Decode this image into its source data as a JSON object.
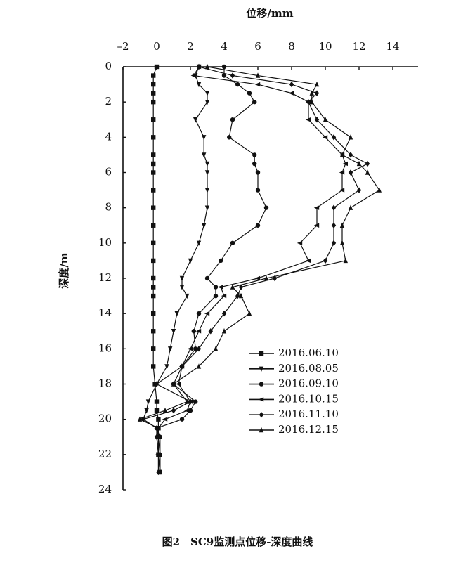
{
  "chart_data": {
    "type": "line",
    "title": "图2　SC9监测点位移-深度曲线",
    "x_label": "位移/mm",
    "y_label": "深度/m",
    "xlim": [
      -2,
      15.5
    ],
    "ylim": [
      0,
      24
    ],
    "xticks": [
      {
        "value": -2,
        "label": "–2"
      },
      0,
      2,
      4,
      6,
      8,
      10,
      12,
      14
    ],
    "yticks": [
      0,
      2,
      4,
      6,
      8,
      10,
      12,
      14,
      16,
      18,
      20,
      22,
      24
    ],
    "y": [
      0,
      0.5,
      1,
      1.5,
      2,
      3,
      4,
      5,
      5.5,
      6,
      7,
      8,
      9,
      10,
      11,
      12,
      12.5,
      13,
      14,
      15,
      16,
      17,
      18,
      19,
      19.5,
      20,
      20.5,
      21,
      22,
      23
    ],
    "series": [
      {
        "name": "2016.06.10",
        "color": "#111111",
        "marker": "square",
        "values": [
          0,
          -0.2,
          -0.2,
          -0.2,
          -0.2,
          -0.2,
          -0.2,
          -0.2,
          -0.2,
          -0.2,
          -0.2,
          -0.2,
          -0.2,
          -0.2,
          -0.2,
          -0.2,
          -0.2,
          -0.2,
          -0.2,
          -0.2,
          -0.2,
          -0.2,
          -0.1,
          0,
          0,
          0.1,
          0.1,
          0.1,
          0.1,
          0.2
        ]
      },
      {
        "name": "2016.08.05",
        "color": "#111111",
        "marker": "tri-down",
        "values": [
          2.5,
          2.3,
          2.5,
          3,
          3,
          2.3,
          2.8,
          2.8,
          3,
          3,
          3,
          3,
          2.8,
          2.5,
          2,
          1.5,
          1.5,
          1.8,
          1.2,
          1,
          0.8,
          0.6,
          0,
          -0.5,
          -0.6,
          -0.8,
          0,
          0.1,
          0.1,
          0.2
        ]
      },
      {
        "name": "2016.09.10",
        "color": "#111111",
        "marker": "circle",
        "values": [
          4,
          4,
          4.8,
          5.5,
          5.8,
          4.5,
          4.3,
          5.8,
          5.8,
          6,
          6,
          6.5,
          6,
          4.5,
          3.8,
          3,
          3.5,
          3.5,
          2.5,
          2.2,
          2.3,
          1.5,
          1,
          2.3,
          2,
          1.5,
          0,
          0.2,
          0.2,
          0.2
        ]
      },
      {
        "name": "2016.10.15",
        "color": "#111111",
        "marker": "tri-left",
        "values": [
          2.5,
          2.2,
          6,
          8,
          9,
          9,
          10,
          11,
          11.2,
          11,
          11,
          9.5,
          9.5,
          8.5,
          9,
          6,
          3.8,
          4,
          3,
          2.5,
          2,
          1.5,
          1.3,
          2,
          1.8,
          0.5,
          0.1,
          0.1,
          0.1,
          0.2
        ]
      },
      {
        "name": "2016.11.10",
        "color": "#111111",
        "marker": "diamond",
        "values": [
          2.5,
          4.5,
          8,
          9.5,
          9,
          9.5,
          10.5,
          11.5,
          12.5,
          11.5,
          12,
          10.5,
          10.5,
          10.5,
          10,
          7,
          5,
          4.8,
          4,
          3.2,
          2.5,
          1.5,
          0,
          2,
          1,
          -0.8,
          0,
          0,
          0.1,
          0.1
        ]
      },
      {
        "name": "2016.12.15",
        "color": "#111111",
        "marker": "triangle",
        "values": [
          3,
          6,
          9.5,
          9.2,
          9.2,
          10,
          11.5,
          11,
          12,
          12.5,
          13.2,
          11.5,
          11,
          11,
          11.2,
          6.5,
          4.5,
          5,
          5.5,
          4,
          3.5,
          2.5,
          1,
          1.8,
          0.5,
          -1,
          0.1,
          0.1,
          0.2,
          0.2
        ]
      }
    ]
  }
}
